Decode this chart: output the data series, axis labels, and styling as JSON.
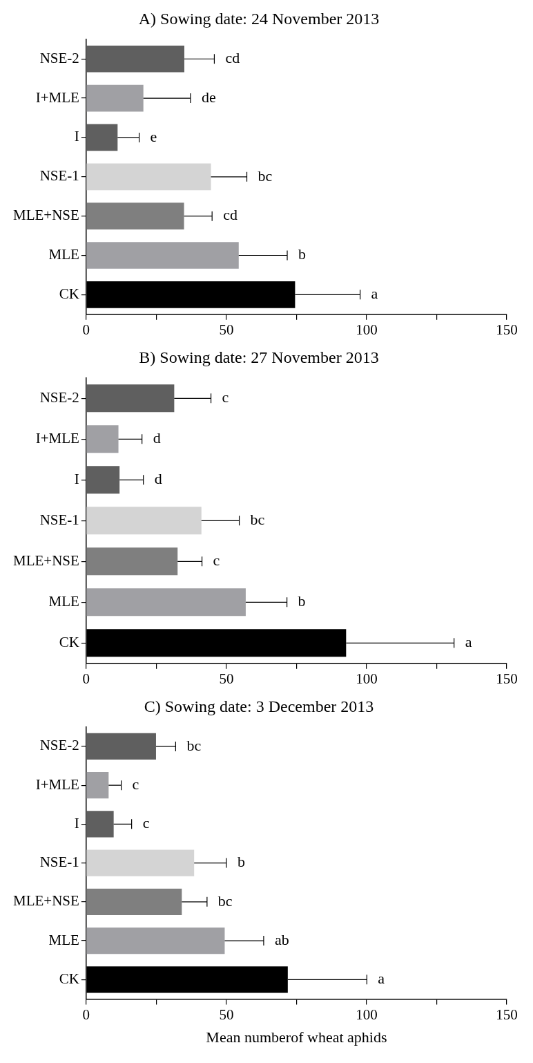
{
  "chart_data": [
    {
      "type": "bar",
      "title": "A) Sowing date: 24 November 2013",
      "orientation": "horizontal",
      "categories": [
        "NSE-2",
        "I+MLE",
        "I",
        "NSE-1",
        "MLE+NSE",
        "MLE",
        "CK"
      ],
      "values": [
        35.0,
        20.4,
        11.2,
        44.5,
        34.9,
        54.4,
        74.5
      ],
      "errors": [
        10.7,
        16.8,
        7.7,
        12.8,
        10.0,
        17.3,
        23.2
      ],
      "colors": [
        "#5f5f5f",
        "#a0a0a4",
        "#5f5f5f",
        "#d4d4d4",
        "#7f7f7f",
        "#a0a0a4",
        "#000000"
      ],
      "annotations": [
        {
          "text": "cd",
          "x": 45.7,
          "y": "NSE-2"
        },
        {
          "text": "de",
          "x": 37.2,
          "y": "I+MLE"
        },
        {
          "text": "e",
          "x": 18.9,
          "y": "I"
        },
        {
          "text": "bc",
          "x": 57.3,
          "y": "NSE-1"
        },
        {
          "text": "cd",
          "x": 44.9,
          "y": "MLE+NSE"
        },
        {
          "text": "b",
          "x": 71.7,
          "y": "MLE"
        },
        {
          "text": "a",
          "x": 97.7,
          "y": "CK"
        }
      ],
      "xlim": [
        0,
        150
      ],
      "xticks": [
        0,
        {
          "value": 25,
          "label": null
        },
        50,
        {
          "value": 75,
          "label": null
        },
        100,
        {
          "value": 125,
          "label": null
        },
        150
      ],
      "grid": false,
      "legend": false
    },
    {
      "type": "bar",
      "title": "B) Sowing date: 27 November 2013",
      "orientation": "horizontal",
      "categories": [
        "NSE-2",
        "I+MLE",
        "I",
        "NSE-1",
        "MLE+NSE",
        "MLE",
        "CK"
      ],
      "values": [
        31.4,
        11.5,
        11.9,
        41.1,
        32.6,
        56.9,
        92.7
      ],
      "errors": [
        13.1,
        8.4,
        8.5,
        13.5,
        8.7,
        14.7,
        38.5
      ],
      "colors": [
        "#5f5f5f",
        "#a0a0a4",
        "#5f5f5f",
        "#d4d4d4",
        "#7f7f7f",
        "#a0a0a4",
        "#000000"
      ],
      "annotations": [
        {
          "text": "c",
          "x": 44.5,
          "y": "NSE-2"
        },
        {
          "text": "d",
          "x": 19.9,
          "y": "I+MLE"
        },
        {
          "text": "d",
          "x": 20.4,
          "y": "I"
        },
        {
          "text": "bc",
          "x": 54.6,
          "y": "NSE-1"
        },
        {
          "text": "c",
          "x": 41.3,
          "y": "MLE+NSE"
        },
        {
          "text": "b",
          "x": 71.6,
          "y": "MLE"
        },
        {
          "text": "a",
          "x": 131.2,
          "y": "CK"
        }
      ],
      "xlim": [
        0,
        150
      ],
      "xticks": [
        0,
        {
          "value": 25,
          "label": null
        },
        50,
        {
          "value": 75,
          "label": null
        },
        100,
        {
          "value": 125,
          "label": null
        },
        150
      ],
      "grid": false,
      "legend": false
    },
    {
      "type": "bar",
      "title": "C) Sowing date: 3 December 2013",
      "xlabel": "Mean numberof wheat aphids",
      "orientation": "horizontal",
      "categories": [
        "NSE-2",
        "I+MLE",
        "I",
        "NSE-1",
        "MLE+NSE",
        "MLE",
        "CK"
      ],
      "values": [
        24.9,
        8.0,
        9.8,
        38.5,
        34.1,
        49.4,
        71.9
      ],
      "errors": [
        7.0,
        4.5,
        6.4,
        11.5,
        9.0,
        13.9,
        28.2
      ],
      "colors": [
        "#5f5f5f",
        "#a0a0a4",
        "#5f5f5f",
        "#d4d4d4",
        "#7f7f7f",
        "#a0a0a4",
        "#000000"
      ],
      "annotations": [
        {
          "text": "bc",
          "x": 31.9,
          "y": "NSE-2"
        },
        {
          "text": "c",
          "x": 12.5,
          "y": "I+MLE"
        },
        {
          "text": "c",
          "x": 16.2,
          "y": "I"
        },
        {
          "text": "b",
          "x": 50.0,
          "y": "NSE-1"
        },
        {
          "text": "bc",
          "x": 43.1,
          "y": "MLE+NSE"
        },
        {
          "text": "ab",
          "x": 63.3,
          "y": "MLE"
        },
        {
          "text": "a",
          "x": 100.1,
          "y": "CK"
        }
      ],
      "xlim": [
        0,
        150
      ],
      "xticks": [
        0,
        {
          "value": 25,
          "label": null
        },
        50,
        {
          "value": 75,
          "label": null
        },
        100,
        {
          "value": 125,
          "label": null
        },
        150
      ],
      "grid": false,
      "legend": false
    }
  ]
}
